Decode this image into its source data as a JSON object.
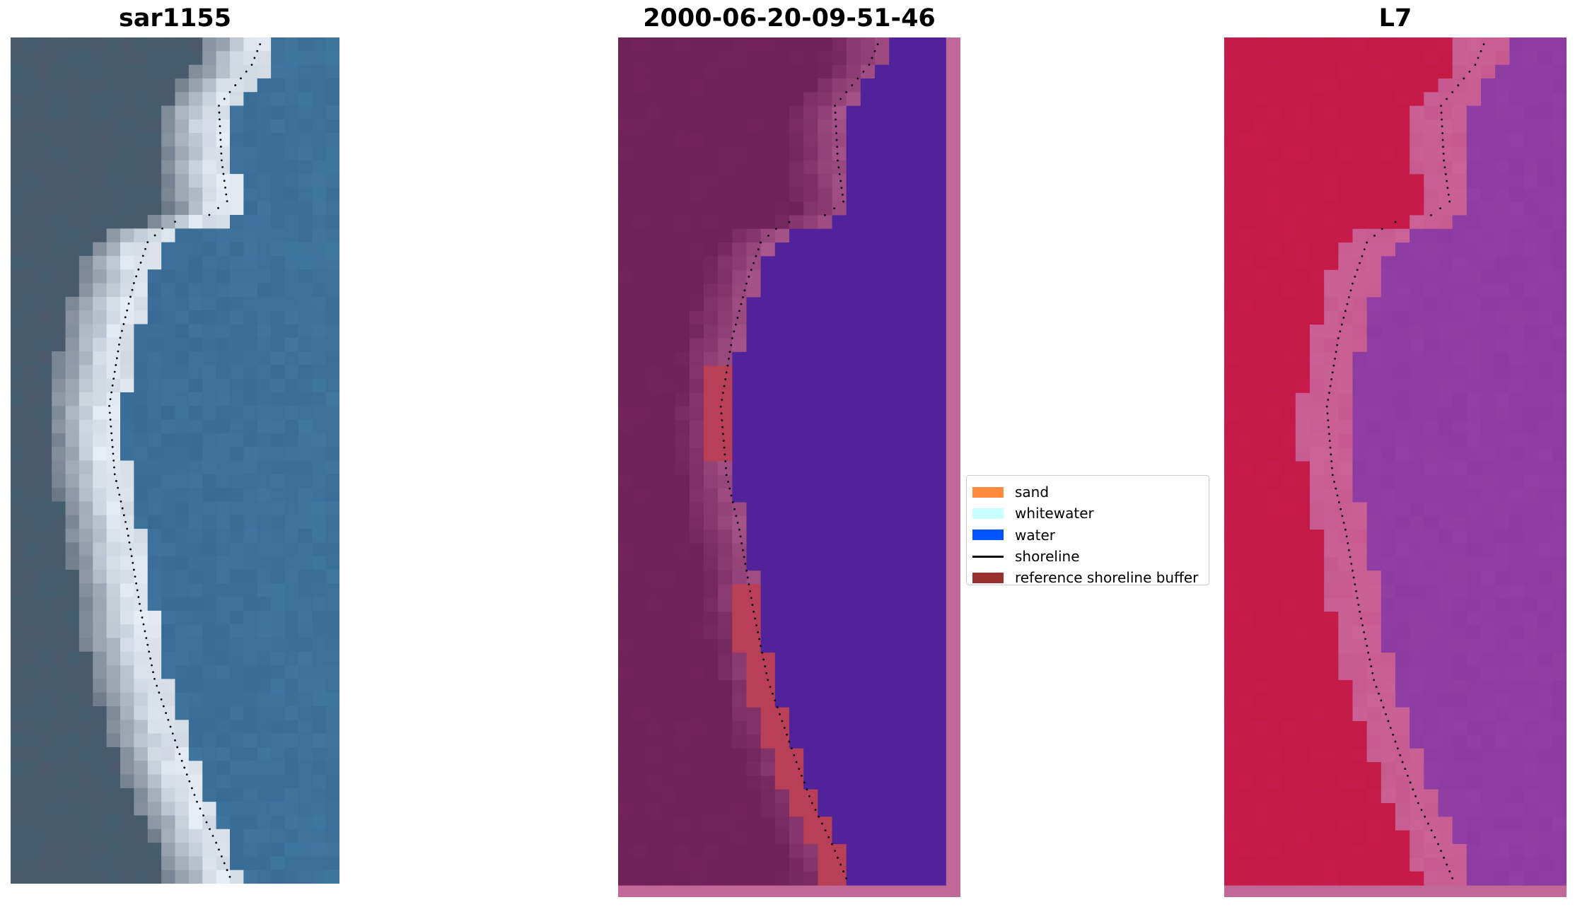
{
  "panels": [
    {
      "id": "rgb",
      "title": "sar1155"
    },
    {
      "id": "classified",
      "title": "2000-06-20-09-51-46"
    },
    {
      "id": "mndwi",
      "title": "L7"
    }
  ],
  "legend": {
    "items": [
      {
        "label": "sand",
        "color": "#ff8a3d",
        "kind": "patch"
      },
      {
        "label": "whitewater",
        "color": "#c8ffff",
        "kind": "patch"
      },
      {
        "label": "water",
        "color": "#0054ff",
        "kind": "patch"
      },
      {
        "label": "shoreline",
        "color": "#000000",
        "kind": "line"
      },
      {
        "label": "reference shoreline buffer",
        "color": "#98302f",
        "kind": "patch"
      }
    ]
  },
  "colors": {
    "rgb_water": "#356690",
    "rgb_land": "#4a5a6c",
    "rgb_beach": "#e8eef5",
    "classified_land": "#6e2258",
    "classified_water": "#52229a",
    "classified_buffer": "#b83f55",
    "classified_nodata": "#c06897",
    "index_land": "#c41a45",
    "index_water": "#8c3ba0",
    "index_transition": "#c65a90",
    "index_nodata": "#c06897",
    "shoreline": "#000000"
  }
}
